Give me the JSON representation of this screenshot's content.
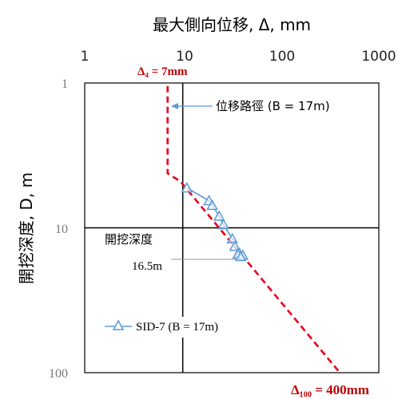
{
  "chart_data": {
    "type": "line",
    "title": "最大側向位移, Δ, mm",
    "xlabel": "最大側向位移, Δ, mm",
    "ylabel": "開挖深度,  D, m",
    "x_scale": "log",
    "y_scale": "log",
    "y_inverted": true,
    "xlim": [
      1,
      1000
    ],
    "ylim": [
      1,
      100
    ],
    "x_ticks": [
      "1",
      "10",
      "100",
      "1000"
    ],
    "y_ticks": [
      "1",
      "10",
      "100"
    ],
    "grid": false,
    "reference_lines": {
      "x": 10,
      "y": 10
    },
    "series": [
      {
        "name": "位移路徑 (B = 17m)",
        "style": "dashed",
        "color": "#e8001c",
        "points": [
          [
            7,
            1.05
          ],
          [
            7,
            4.2
          ],
          [
            9.5,
            4.8
          ],
          [
            400,
            100
          ]
        ]
      },
      {
        "name": "SID-7 (B = 17m)",
        "style": "line-triangle",
        "color": "#5b9bd5",
        "points": [
          [
            11.0,
            5.3
          ],
          [
            18.5,
            6.5
          ],
          [
            20.0,
            7.0
          ],
          [
            23.5,
            8.3
          ],
          [
            26.0,
            9.5
          ],
          [
            32.0,
            11.9
          ],
          [
            34.0,
            13.4
          ],
          [
            38.0,
            15.0
          ],
          [
            36.5,
            15.2
          ],
          [
            41.0,
            15.5
          ],
          [
            39.0,
            15.8
          ]
        ]
      }
    ],
    "annotations": {
      "delta_4": "Δ₄ = 7mm",
      "delta_100": "Δ₁₀₀ = 400mm",
      "path_label": "位移路徑 (B = 17m)",
      "excavation_label": "開挖深度",
      "excavation_depth": "16.5m",
      "excavation_depth_value": 16.5
    },
    "legend": {
      "label": "SID-7 (B = 17m)",
      "placement": "bottom-left"
    },
    "colors": {
      "path": "#e8001c",
      "series": "#5b9bd5",
      "annotation_red": "#c00000"
    }
  }
}
